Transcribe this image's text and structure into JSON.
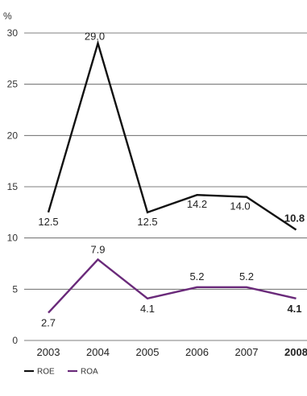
{
  "chart_data": {
    "type": "line",
    "ylabel": "%",
    "ylim": [
      0,
      30
    ],
    "yticks": [
      "0",
      "5",
      "10",
      "15",
      "20",
      "25",
      "30"
    ],
    "categories": [
      "2003",
      "2004",
      "2005",
      "2006",
      "2007",
      "2008"
    ],
    "bold_last_category": true,
    "grid": true,
    "legend_position": "bottom-left",
    "series": [
      {
        "name": "ROE",
        "color": "#111111",
        "values": [
          12.5,
          29.0,
          12.5,
          14.2,
          14.0,
          10.8
        ],
        "labels": [
          "12.5",
          "29.0",
          "12.5",
          "14.2",
          "14.0",
          "10.8"
        ]
      },
      {
        "name": "ROA",
        "color": "#6a2a7a",
        "values": [
          2.7,
          7.9,
          4.1,
          5.2,
          5.2,
          4.1
        ],
        "labels": [
          "2.7",
          "7.9",
          "4.1",
          "5.2",
          "5.2",
          "4.1"
        ]
      }
    ]
  }
}
